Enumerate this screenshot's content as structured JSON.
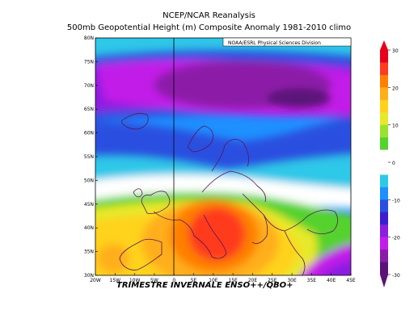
{
  "title_line1": "NCEP/NCAR Reanalysis",
  "title_line2": "500mb Geopotential Height (m) Composite Anomaly 1981-2010 climo",
  "credit": "NOAA/ESRL Physical Sciences Division",
  "caption": "TRIMESTRE INVERNALE  ENSO++/QBO+",
  "lat_labels": [
    "80N",
    "75N",
    "70N",
    "65N",
    "60N",
    "55N",
    "50N",
    "45N",
    "40N",
    "35N",
    "30N"
  ],
  "lat_values": [
    80,
    75,
    70,
    65,
    60,
    55,
    50,
    45,
    40,
    35,
    30
  ],
  "lon_labels": [
    "20W",
    "15W",
    "10W",
    "5W",
    "0",
    "5E",
    "10E",
    "15E",
    "20E",
    "25E",
    "30E",
    "35E",
    "40E",
    "45E"
  ],
  "lon_values": [
    -20,
    -15,
    -10,
    -5,
    0,
    5,
    10,
    15,
    20,
    25,
    30,
    35,
    40,
    45
  ],
  "colorbar": {
    "labels": [
      "30",
      "20",
      "10",
      "0",
      "-10",
      "-20",
      "-30"
    ],
    "values": [
      30,
      20,
      10,
      0,
      -10,
      -20,
      -30
    ],
    "colors": [
      "#e8001a",
      "#ff3b1f",
      "#ff7f00",
      "#ffae1a",
      "#ffd21a",
      "#e8e82a",
      "#9be22e",
      "#55d22e",
      "#ffffff",
      "#ffffff",
      "#2ec8e8",
      "#1e90ff",
      "#2a50e0",
      "#3a1ed2",
      "#8c1ee0",
      "#c21ee8",
      "#8c1aa8",
      "#5a1478"
    ],
    "min": -30,
    "max": 30
  }
}
